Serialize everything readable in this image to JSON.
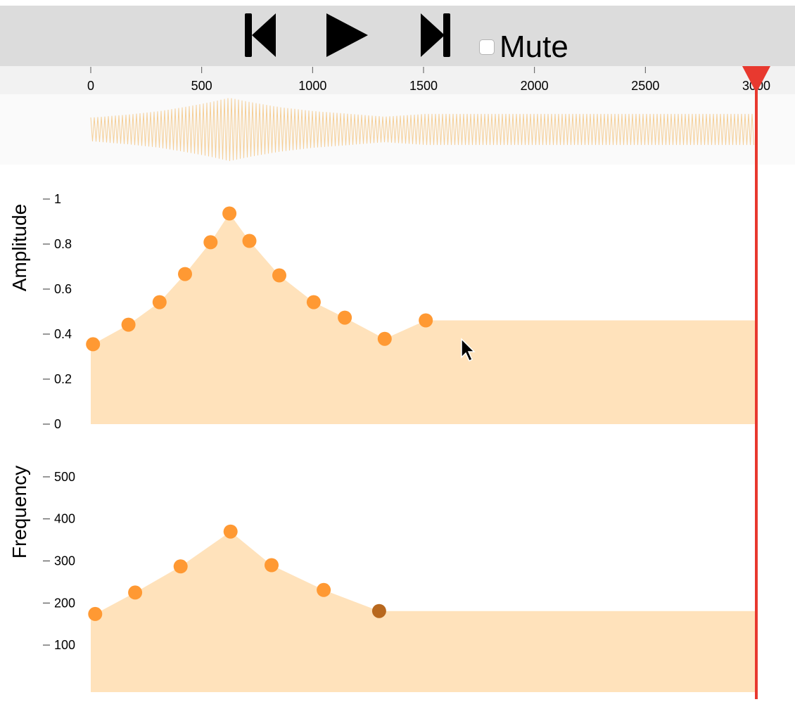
{
  "toolbar": {
    "prev_icon": "skip-back-icon",
    "play_icon": "play-icon",
    "next_icon": "skip-forward-icon",
    "mute_label": "Mute",
    "mute_checked": false
  },
  "timeline": {
    "ticks": [
      0,
      500,
      1000,
      1500,
      2000,
      2500,
      3000
    ],
    "playhead_time": 3000,
    "end_time": 3000,
    "playhead_color": "#e8392f"
  },
  "colors": {
    "fill": "#ffe2bb",
    "point": "#ff9933",
    "point_selected": "#b8681e",
    "waveform": "#f5cf98"
  },
  "amplitude": {
    "title": "Amplitude",
    "y_ticks": [
      0,
      0.2,
      0.4,
      0.6,
      0.8,
      1
    ],
    "y_tick_labels": [
      "0",
      "0.2",
      "0.4",
      "0.6",
      "0.8",
      "1"
    ],
    "ylim": [
      0,
      1
    ],
    "points": [
      {
        "t": 10,
        "v": 0.355
      },
      {
        "t": 170,
        "v": 0.442
      },
      {
        "t": 310,
        "v": 0.542
      },
      {
        "t": 425,
        "v": 0.667
      },
      {
        "t": 540,
        "v": 0.808
      },
      {
        "t": 625,
        "v": 0.936
      },
      {
        "t": 715,
        "v": 0.814
      },
      {
        "t": 850,
        "v": 0.661
      },
      {
        "t": 1005,
        "v": 0.542
      },
      {
        "t": 1145,
        "v": 0.473
      },
      {
        "t": 1325,
        "v": 0.379
      },
      {
        "t": 1510,
        "v": 0.461
      }
    ]
  },
  "frequency": {
    "title": "Frequency",
    "y_ticks": [
      100,
      200,
      300,
      400,
      500
    ],
    "y_tick_labels": [
      "100",
      "200",
      "300",
      "400",
      "500"
    ],
    "ylim": [
      50,
      525
    ],
    "points": [
      {
        "t": 20,
        "v": 174
      },
      {
        "t": 200,
        "v": 225
      },
      {
        "t": 405,
        "v": 287
      },
      {
        "t": 630,
        "v": 370
      },
      {
        "t": 815,
        "v": 290
      },
      {
        "t": 1050,
        "v": 231
      },
      {
        "t": 1300,
        "v": 181,
        "selected": true
      }
    ]
  }
}
